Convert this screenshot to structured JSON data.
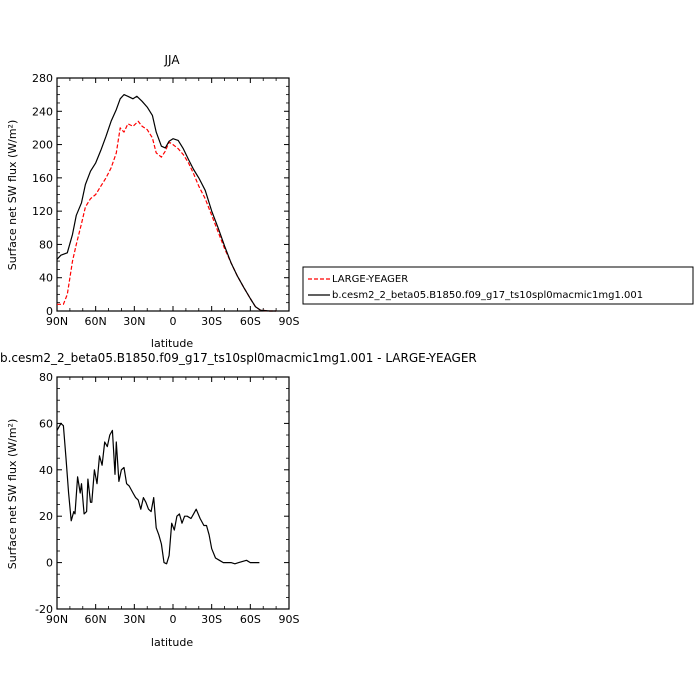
{
  "chart_data": [
    {
      "type": "line",
      "title": "JJA",
      "xlabel": "latitude",
      "ylabel": "Surface net SW flux (W/m²)",
      "xlim": [
        90,
        -90
      ],
      "ylim": [
        0,
        280
      ],
      "x_ticks": [
        90,
        60,
        30,
        0,
        -30,
        -60,
        -90
      ],
      "x_tick_labels": [
        "90N",
        "60N",
        "30N",
        "0",
        "30S",
        "60S",
        "90S"
      ],
      "y_ticks": [
        0,
        40,
        80,
        120,
        160,
        200,
        240,
        280
      ],
      "y_tick_labels": [
        "0",
        "40",
        "80",
        "120",
        "160",
        "200",
        "240",
        "280"
      ],
      "legend": "right",
      "series": [
        {
          "name": "LARGE-YEAGER",
          "color": "#ff0000",
          "dash": "dashed",
          "points": [
            [
              90,
              8
            ],
            [
              85,
              8
            ],
            [
              82,
              20
            ],
            [
              78,
              60
            ],
            [
              75,
              80
            ],
            [
              71,
              105
            ],
            [
              68,
              125
            ],
            [
              64,
              135
            ],
            [
              60,
              140
            ],
            [
              56,
              150
            ],
            [
              52,
              160
            ],
            [
              48,
              172
            ],
            [
              44,
              190
            ],
            [
              41,
              220
            ],
            [
              38,
              215
            ],
            [
              35,
              225
            ],
            [
              31,
              222
            ],
            [
              27,
              228
            ],
            [
              24,
              222
            ],
            [
              20,
              218
            ],
            [
              16,
              208
            ],
            [
              13,
              190
            ],
            [
              9,
              185
            ],
            [
              6,
              192
            ],
            [
              3,
              203
            ],
            [
              0,
              200
            ],
            [
              -4,
              195
            ],
            [
              -8,
              188
            ],
            [
              -12,
              178
            ],
            [
              -16,
              165
            ],
            [
              -20,
              150
            ],
            [
              -25,
              135
            ],
            [
              -30,
              115
            ],
            [
              -35,
              95
            ],
            [
              -40,
              75
            ],
            [
              -45,
              58
            ],
            [
              -50,
              42
            ],
            [
              -55,
              28
            ],
            [
              -60,
              15
            ],
            [
              -64,
              5
            ],
            [
              -68,
              1
            ],
            [
              -75,
              0
            ],
            [
              -80,
              0
            ]
          ]
        },
        {
          "name": "b.cesm2_2_beta05.B1850.f09_g17_ts10spl0macmic1mg1.001",
          "color": "#000000",
          "dash": "solid",
          "points": [
            [
              90,
              62
            ],
            [
              87,
              67
            ],
            [
              82,
              70
            ],
            [
              78,
              92
            ],
            [
              75,
              115
            ],
            [
              71,
              130
            ],
            [
              68,
              152
            ],
            [
              64,
              168
            ],
            [
              60,
              178
            ],
            [
              56,
              193
            ],
            [
              52,
              210
            ],
            [
              48,
              228
            ],
            [
              44,
              242
            ],
            [
              41,
              255
            ],
            [
              38,
              260
            ],
            [
              35,
              258
            ],
            [
              31,
              255
            ],
            [
              28,
              258
            ],
            [
              24,
              252
            ],
            [
              20,
              245
            ],
            [
              16,
              235
            ],
            [
              13,
              215
            ],
            [
              9,
              198
            ],
            [
              6,
              196
            ],
            [
              3,
              204
            ],
            [
              0,
              207
            ],
            [
              -4,
              205
            ],
            [
              -8,
              195
            ],
            [
              -12,
              182
            ],
            [
              -16,
              170
            ],
            [
              -20,
              160
            ],
            [
              -25,
              145
            ],
            [
              -30,
              120
            ],
            [
              -35,
              100
            ],
            [
              -40,
              78
            ],
            [
              -45,
              58
            ],
            [
              -50,
              42
            ],
            [
              -55,
              28
            ],
            [
              -60,
              15
            ],
            [
              -64,
              5
            ],
            [
              -68,
              1
            ],
            [
              -75,
              0
            ],
            [
              -80,
              0
            ]
          ]
        }
      ]
    },
    {
      "type": "line",
      "title": "b.cesm2_2_beta05.B1850.f09_g17_ts10spl0macmic1mg1.001 - LARGE-YEAGER",
      "xlabel": "latitude",
      "ylabel": "Surface net SW flux (W/m²)",
      "xlim": [
        90,
        -90
      ],
      "ylim": [
        -20,
        80
      ],
      "x_ticks": [
        90,
        60,
        30,
        0,
        -30,
        -60,
        -90
      ],
      "x_tick_labels": [
        "90N",
        "60N",
        "30N",
        "0",
        "30S",
        "60S",
        "90S"
      ],
      "y_ticks": [
        -20,
        0,
        20,
        40,
        60,
        80
      ],
      "y_tick_labels": [
        "-20",
        "0",
        "20",
        "40",
        "60",
        "80"
      ],
      "series": [
        {
          "color": "#000000",
          "dash": "solid",
          "points": [
            [
              90,
              57
            ],
            [
              87,
              60
            ],
            [
              85,
              59
            ],
            [
              83,
              45
            ],
            [
              81,
              30
            ],
            [
              79,
              18
            ],
            [
              77,
              22
            ],
            [
              76,
              21
            ],
            [
              74,
              37
            ],
            [
              72,
              30
            ],
            [
              71,
              34
            ],
            [
              69,
              21
            ],
            [
              67,
              22
            ],
            [
              66,
              36
            ],
            [
              64,
              26
            ],
            [
              63,
              26
            ],
            [
              61,
              40
            ],
            [
              59,
              34
            ],
            [
              57,
              46
            ],
            [
              55,
              42
            ],
            [
              53,
              52
            ],
            [
              51,
              50
            ],
            [
              49,
              55
            ],
            [
              47,
              57
            ],
            [
              45,
              38
            ],
            [
              44,
              52
            ],
            [
              42,
              35
            ],
            [
              40,
              40
            ],
            [
              38,
              41
            ],
            [
              36,
              34
            ],
            [
              34,
              33
            ],
            [
              31,
              30
            ],
            [
              29,
              28
            ],
            [
              27,
              27
            ],
            [
              25,
              23
            ],
            [
              23,
              28
            ],
            [
              21,
              26
            ],
            [
              19,
              23
            ],
            [
              17,
              22
            ],
            [
              15,
              28
            ],
            [
              13,
              15
            ],
            [
              11,
              12
            ],
            [
              9,
              8
            ],
            [
              7,
              0
            ],
            [
              5,
              -0.5
            ],
            [
              3,
              3
            ],
            [
              1,
              17
            ],
            [
              -1,
              14
            ],
            [
              -3,
              20
            ],
            [
              -5,
              21
            ],
            [
              -7,
              17
            ],
            [
              -9,
              20
            ],
            [
              -11,
              20
            ],
            [
              -14,
              19
            ],
            [
              -16,
              21
            ],
            [
              -18,
              23
            ],
            [
              -21,
              19
            ],
            [
              -24,
              16
            ],
            [
              -26,
              16
            ],
            [
              -28,
              12
            ],
            [
              -30,
              6
            ],
            [
              -33,
              2
            ],
            [
              -36,
              1
            ],
            [
              -39,
              0
            ],
            [
              -42,
              0
            ],
            [
              -45,
              0
            ],
            [
              -48,
              -0.5
            ],
            [
              -51,
              0
            ],
            [
              -54,
              0.5
            ],
            [
              -57,
              1
            ],
            [
              -60,
              0
            ],
            [
              -63,
              0
            ],
            [
              -67,
              0
            ]
          ]
        }
      ]
    }
  ]
}
